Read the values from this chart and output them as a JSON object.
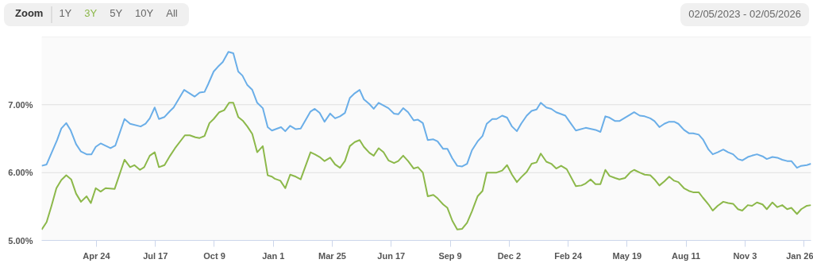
{
  "chart_data": {
    "type": "line",
    "annotations": [
      "Zoom",
      "1Y",
      "3Y",
      "5Y",
      "10Y",
      "All",
      "02/05/2023 - 02/05/2026"
    ],
    "xlim": [
      "2023-02-05",
      "2026-02-05"
    ],
    "xticks": [
      {
        "value": "2023-04-24",
        "label": "Apr 24"
      },
      {
        "value": "2023-07-17",
        "label": "Jul 17"
      },
      {
        "value": "2023-10-09",
        "label": "Oct 9"
      },
      {
        "value": "2024-01-01",
        "label": "Jan 1"
      },
      {
        "value": "2024-03-25",
        "label": "Mar 25"
      },
      {
        "value": "2024-06-17",
        "label": "Jun 17"
      },
      {
        "value": "2024-09-09",
        "label": "Sep 9"
      },
      {
        "value": "2024-12-02",
        "label": "Dec 2"
      },
      {
        "value": "2025-02-24",
        "label": "Feb 24"
      },
      {
        "value": "2025-05-19",
        "label": "May 19"
      },
      {
        "value": "2025-08-11",
        "label": "Aug 11"
      },
      {
        "value": "2025-11-03",
        "label": "Nov 3"
      },
      {
        "value": "2026-01-26",
        "label": "Jan 26"
      }
    ],
    "ylim": [
      5,
      8
    ],
    "yticks": [
      {
        "value": 5,
        "label": "5.00%"
      },
      {
        "value": 6,
        "label": "6.00%"
      },
      {
        "value": 7,
        "label": "7.00%"
      },
      {
        "value": 8,
        "label": null
      }
    ],
    "grid": "y",
    "marker": "none",
    "line_style": "solid",
    "series": [
      {
        "color": "#6aaee8",
        "x": [
          "2023-02-05",
          "2023-02-12",
          "2023-02-27",
          "2023-03-05",
          "2023-03-12",
          "2023-03-18",
          "2023-03-26",
          "2023-04-02",
          "2023-04-10",
          "2023-04-17",
          "2023-04-23",
          "2023-04-30",
          "2023-05-14",
          "2023-05-21",
          "2023-06-03",
          "2023-06-11",
          "2023-06-26",
          "2023-07-03",
          "2023-07-09",
          "2023-07-16",
          "2023-07-22",
          "2023-07-30",
          "2023-08-07",
          "2023-08-12",
          "2023-08-27",
          "2023-09-11",
          "2023-09-18",
          "2023-09-25",
          "2023-09-30",
          "2023-10-08",
          "2023-10-14",
          "2023-10-21",
          "2023-10-29",
          "2023-11-05",
          "2023-11-12",
          "2023-11-18",
          "2023-11-25",
          "2023-12-02",
          "2023-12-09",
          "2023-12-17",
          "2023-12-24",
          "2023-12-30",
          "2024-01-12",
          "2024-01-18",
          "2024-01-25",
          "2024-02-02",
          "2024-02-09",
          "2024-02-23",
          "2024-02-29",
          "2024-03-07",
          "2024-03-14",
          "2024-03-22",
          "2024-03-29",
          "2024-04-05",
          "2024-04-12",
          "2024-04-19",
          "2024-04-26",
          "2024-05-03",
          "2024-05-09",
          "2024-05-17",
          "2024-05-23",
          "2024-05-30",
          "2024-06-13",
          "2024-06-21",
          "2024-06-27",
          "2024-07-04",
          "2024-07-11",
          "2024-07-19",
          "2024-07-25",
          "2024-08-01",
          "2024-08-08",
          "2024-08-16",
          "2024-08-22",
          "2024-08-30",
          "2024-09-05",
          "2024-09-12",
          "2024-09-19",
          "2024-09-26",
          "2024-10-03",
          "2024-10-10",
          "2024-10-18",
          "2024-10-25",
          "2024-10-31",
          "2024-11-08",
          "2024-11-14",
          "2024-11-22",
          "2024-11-29",
          "2024-12-06",
          "2024-12-13",
          "2024-12-19",
          "2024-12-27",
          "2025-01-03",
          "2025-01-10",
          "2025-01-16",
          "2025-01-24",
          "2025-01-31",
          "2025-02-07",
          "2025-02-20",
          "2025-02-26",
          "2025-03-07",
          "2025-03-21",
          "2025-04-04",
          "2025-04-11",
          "2025-04-18",
          "2025-04-24",
          "2025-05-02",
          "2025-05-08",
          "2025-05-16",
          "2025-05-24",
          "2025-05-29",
          "2025-06-06",
          "2025-06-13",
          "2025-06-21",
          "2025-06-27",
          "2025-07-04",
          "2025-07-11",
          "2025-07-18",
          "2025-07-25",
          "2025-07-31",
          "2025-08-08",
          "2025-08-15",
          "2025-08-21",
          "2025-08-29",
          "2025-09-04",
          "2025-09-12",
          "2025-09-18",
          "2025-09-25",
          "2025-10-03",
          "2025-10-10",
          "2025-10-17",
          "2025-10-24",
          "2025-10-30",
          "2025-11-07",
          "2025-11-13",
          "2025-11-20",
          "2025-11-28",
          "2025-12-04",
          "2025-12-12",
          "2025-12-19",
          "2025-12-26",
          "2026-01-02",
          "2026-01-08",
          "2026-01-16",
          "2026-01-22",
          "2026-01-30",
          "2026-02-05"
        ],
        "values": [
          6.1,
          6.12,
          6.48,
          6.65,
          6.73,
          6.63,
          6.42,
          6.31,
          6.27,
          6.27,
          6.38,
          6.43,
          6.36,
          6.4,
          6.79,
          6.72,
          6.68,
          6.72,
          6.8,
          6.96,
          6.79,
          6.82,
          6.91,
          6.96,
          7.22,
          7.12,
          7.18,
          7.19,
          7.3,
          7.49,
          7.56,
          7.63,
          7.78,
          7.76,
          7.49,
          7.43,
          7.29,
          7.22,
          7.03,
          6.95,
          6.67,
          6.62,
          6.67,
          6.61,
          6.69,
          6.64,
          6.65,
          6.9,
          6.94,
          6.88,
          6.75,
          6.87,
          6.8,
          6.83,
          6.88,
          7.1,
          7.17,
          7.22,
          7.08,
          7.01,
          6.94,
          7.03,
          6.95,
          6.87,
          6.86,
          6.95,
          6.89,
          6.77,
          6.78,
          6.73,
          6.48,
          6.49,
          6.46,
          6.35,
          6.35,
          6.21,
          6.1,
          6.09,
          6.13,
          6.33,
          6.46,
          6.54,
          6.72,
          6.79,
          6.79,
          6.84,
          6.81,
          6.68,
          6.61,
          6.72,
          6.84,
          6.91,
          6.93,
          7.03,
          6.96,
          6.94,
          6.89,
          6.84,
          6.75,
          6.62,
          6.66,
          6.63,
          6.6,
          6.83,
          6.81,
          6.76,
          6.76,
          6.81,
          6.86,
          6.89,
          6.84,
          6.83,
          6.8,
          6.76,
          6.67,
          6.72,
          6.75,
          6.75,
          6.72,
          6.63,
          6.58,
          6.58,
          6.56,
          6.49,
          6.34,
          6.27,
          6.3,
          6.34,
          6.3,
          6.27,
          6.2,
          6.18,
          6.23,
          6.25,
          6.27,
          6.24,
          6.2,
          6.23,
          6.22,
          6.19,
          6.17,
          6.17,
          6.07,
          6.1,
          6.11,
          6.13
        ]
      },
      {
        "color": "#8cb84a",
        "x": [
          "2023-02-05",
          "2023-02-12",
          "2023-02-19",
          "2023-02-26",
          "2023-03-05",
          "2023-03-12",
          "2023-03-19",
          "2023-03-26",
          "2023-04-02",
          "2023-04-10",
          "2023-04-16",
          "2023-04-23",
          "2023-04-30",
          "2023-05-07",
          "2023-05-20",
          "2023-06-03",
          "2023-06-11",
          "2023-06-17",
          "2023-06-25",
          "2023-07-01",
          "2023-07-09",
          "2023-07-16",
          "2023-07-22",
          "2023-07-30",
          "2023-08-07",
          "2023-08-14",
          "2023-08-28",
          "2023-09-04",
          "2023-09-12",
          "2023-09-18",
          "2023-09-25",
          "2023-10-02",
          "2023-10-08",
          "2023-10-16",
          "2023-10-23",
          "2023-10-30",
          "2023-11-05",
          "2023-11-12",
          "2023-11-19",
          "2023-11-25",
          "2023-12-02",
          "2023-12-09",
          "2023-12-17",
          "2023-12-24",
          "2023-12-30",
          "2024-01-03",
          "2024-01-11",
          "2024-01-18",
          "2024-01-25",
          "2024-02-02",
          "2024-02-09",
          "2024-02-23",
          "2024-02-29",
          "2024-03-07",
          "2024-03-14",
          "2024-03-22",
          "2024-03-29",
          "2024-04-05",
          "2024-04-12",
          "2024-04-19",
          "2024-04-26",
          "2024-05-03",
          "2024-05-09",
          "2024-05-17",
          "2024-05-23",
          "2024-05-30",
          "2024-06-06",
          "2024-06-13",
          "2024-06-21",
          "2024-06-27",
          "2024-07-04",
          "2024-07-11",
          "2024-07-19",
          "2024-07-25",
          "2024-08-01",
          "2024-08-08",
          "2024-08-16",
          "2024-08-22",
          "2024-08-30",
          "2024-09-05",
          "2024-09-12",
          "2024-09-19",
          "2024-09-26",
          "2024-10-03",
          "2024-10-10",
          "2024-10-18",
          "2024-10-25",
          "2024-10-31",
          "2024-11-08",
          "2024-11-14",
          "2024-11-22",
          "2024-11-29",
          "2024-12-06",
          "2024-12-13",
          "2024-12-19",
          "2024-12-27",
          "2025-01-03",
          "2025-01-10",
          "2025-01-16",
          "2025-01-24",
          "2025-01-31",
          "2025-02-07",
          "2025-02-14",
          "2025-02-22",
          "2025-03-07",
          "2025-03-15",
          "2025-03-21",
          "2025-03-28",
          "2025-04-04",
          "2025-04-11",
          "2025-04-18",
          "2025-04-24",
          "2025-05-02",
          "2025-05-08",
          "2025-05-16",
          "2025-05-24",
          "2025-05-29",
          "2025-06-06",
          "2025-06-13",
          "2025-06-21",
          "2025-06-27",
          "2025-07-04",
          "2025-07-11",
          "2025-07-18",
          "2025-07-25",
          "2025-07-31",
          "2025-08-08",
          "2025-08-15",
          "2025-08-21",
          "2025-08-29",
          "2025-09-04",
          "2025-09-12",
          "2025-09-18",
          "2025-09-25",
          "2025-10-03",
          "2025-10-10",
          "2025-10-17",
          "2025-10-24",
          "2025-10-30",
          "2025-11-07",
          "2025-11-13",
          "2025-11-20",
          "2025-11-28",
          "2025-12-04",
          "2025-12-12",
          "2025-12-19",
          "2025-12-26",
          "2026-01-02",
          "2026-01-08",
          "2026-01-16",
          "2026-01-22",
          "2026-01-30",
          "2026-02-05"
        ],
        "values": [
          5.16,
          5.27,
          5.51,
          5.77,
          5.89,
          5.96,
          5.9,
          5.69,
          5.57,
          5.65,
          5.55,
          5.77,
          5.72,
          5.77,
          5.76,
          6.19,
          6.08,
          6.11,
          6.04,
          6.08,
          6.25,
          6.3,
          6.08,
          6.11,
          6.25,
          6.36,
          6.55,
          6.55,
          6.52,
          6.51,
          6.54,
          6.73,
          6.79,
          6.89,
          6.92,
          7.03,
          7.03,
          6.82,
          6.76,
          6.68,
          6.57,
          6.3,
          6.39,
          5.96,
          5.94,
          5.91,
          5.88,
          5.77,
          5.97,
          5.94,
          5.9,
          6.3,
          6.27,
          6.23,
          6.17,
          6.22,
          6.12,
          6.07,
          6.17,
          6.39,
          6.45,
          6.48,
          6.38,
          6.29,
          6.25,
          6.36,
          6.3,
          6.18,
          6.14,
          6.17,
          6.25,
          6.17,
          6.06,
          6.08,
          6.0,
          5.65,
          5.67,
          5.62,
          5.53,
          5.48,
          5.29,
          5.16,
          5.17,
          5.26,
          5.43,
          5.65,
          5.73,
          6.0,
          6.0,
          6.0,
          6.03,
          6.11,
          5.97,
          5.86,
          5.93,
          6.01,
          6.13,
          6.15,
          6.28,
          6.16,
          6.13,
          6.06,
          6.1,
          6.05,
          5.8,
          5.81,
          5.84,
          5.9,
          5.83,
          5.83,
          6.04,
          5.95,
          5.92,
          5.9,
          5.92,
          6.01,
          6.04,
          6.0,
          5.97,
          5.96,
          5.9,
          5.81,
          5.87,
          5.94,
          5.88,
          5.86,
          5.77,
          5.73,
          5.71,
          5.71,
          5.63,
          5.53,
          5.44,
          5.51,
          5.57,
          5.55,
          5.54,
          5.46,
          5.44,
          5.52,
          5.51,
          5.56,
          5.53,
          5.46,
          5.56,
          5.49,
          5.52,
          5.46,
          5.48,
          5.39,
          5.46,
          5.51,
          5.52
        ]
      }
    ]
  }
}
